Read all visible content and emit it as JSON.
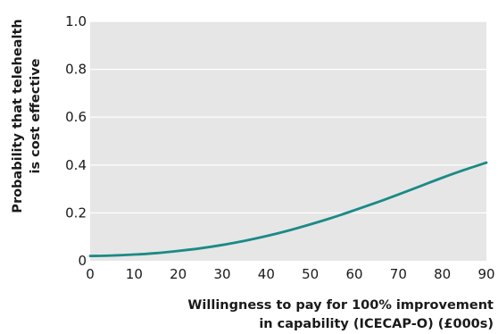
{
  "chart_data": {
    "type": "line",
    "title": "",
    "xlabel_lines": [
      "Willingness to pay for 100% improvement",
      "in capability (ICECAP-O) (£000s)"
    ],
    "ylabel_lines": [
      "Probability that telehealth",
      "is cost effective"
    ],
    "xlim": [
      0,
      90
    ],
    "ylim": [
      0,
      1.0
    ],
    "x_ticks": [
      0,
      10,
      20,
      30,
      40,
      50,
      60,
      70,
      80,
      90
    ],
    "x_tick_labels": [
      "0",
      "10",
      "20",
      "30",
      "40",
      "50",
      "60",
      "70",
      "80",
      "90"
    ],
    "y_ticks": [
      0,
      0.2,
      0.4,
      0.6,
      0.8,
      1.0
    ],
    "y_tick_labels": [
      "0",
      "0.2",
      "0.4",
      "0.6",
      "0.8",
      "1.0"
    ],
    "grid": "horizontal",
    "colors": {
      "plot_background": "#e6e6e6",
      "grid": "#ffffff",
      "line": "#1b8a86"
    },
    "series": [
      {
        "x": [
          0,
          5,
          10,
          15,
          20,
          25,
          30,
          35,
          40,
          45,
          50,
          55,
          60,
          65,
          70,
          75,
          80,
          85,
          90
        ],
        "values": [
          0.02,
          0.022,
          0.026,
          0.032,
          0.041,
          0.052,
          0.066,
          0.083,
          0.103,
          0.126,
          0.152,
          0.18,
          0.211,
          0.243,
          0.277,
          0.312,
          0.347,
          0.38,
          0.41
        ]
      }
    ]
  }
}
